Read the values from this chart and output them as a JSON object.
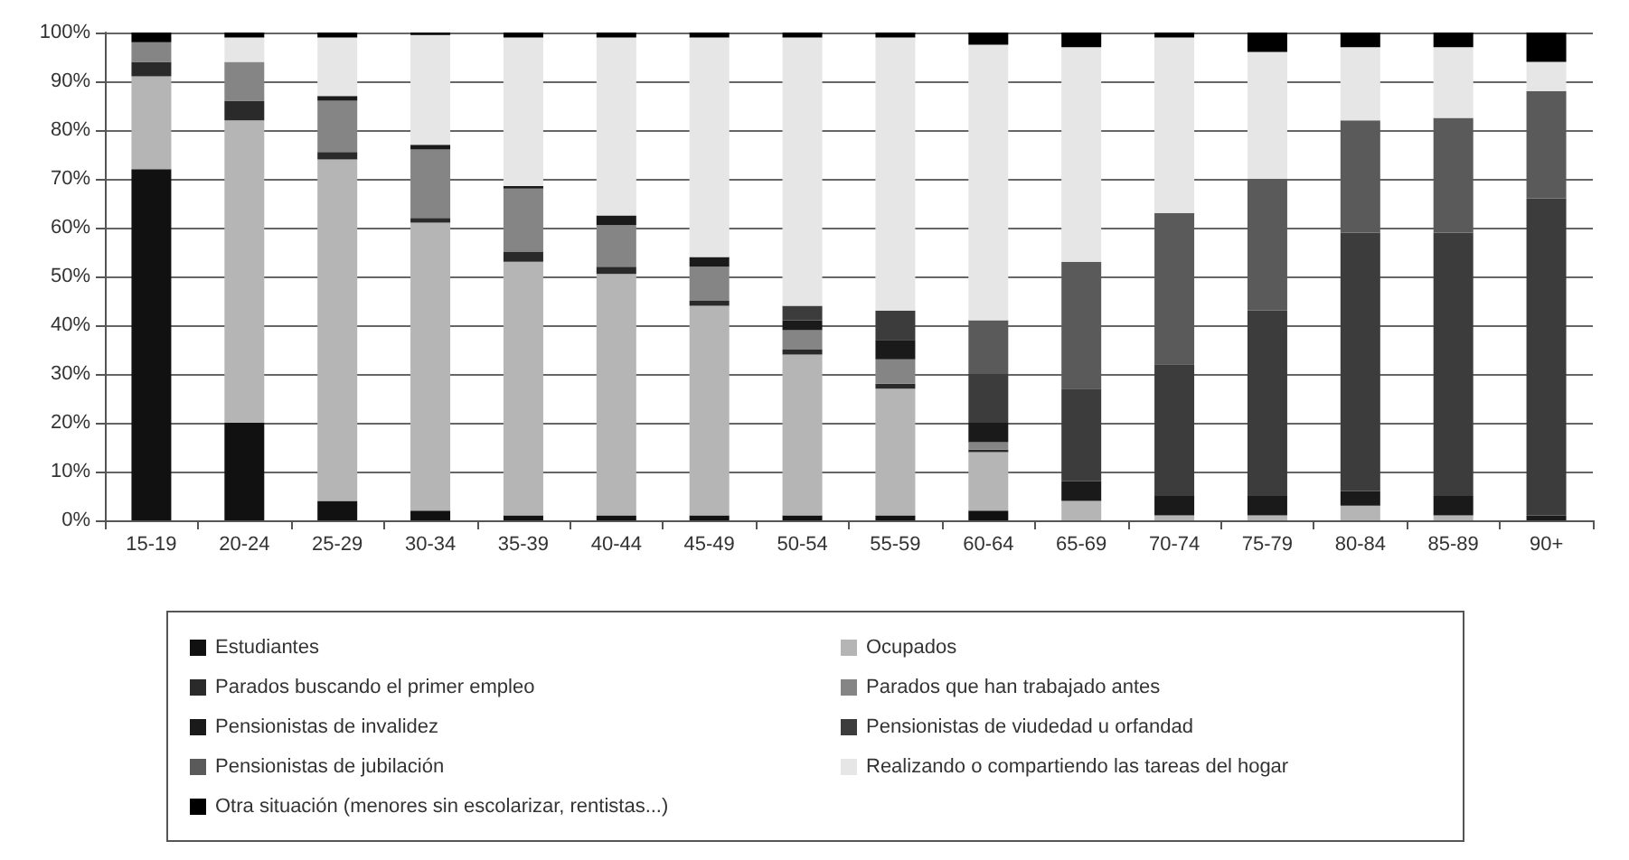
{
  "chart_data": {
    "type": "bar",
    "stacked": true,
    "grid": "y",
    "legend": "bottom",
    "categories": [
      "15-19",
      "20-24",
      "25-29",
      "30-34",
      "35-39",
      "40-44",
      "45-49",
      "50-54",
      "55-59",
      "60-64",
      "65-69",
      "70-74",
      "75-79",
      "80-84",
      "85-89",
      "90+"
    ],
    "ylim": [
      0,
      100
    ],
    "yticks": [
      {
        "value": 0,
        "label": "0%"
      },
      {
        "value": 10,
        "label": "10%"
      },
      {
        "value": 20,
        "label": "20%"
      },
      {
        "value": 30,
        "label": "30%"
      },
      {
        "value": 40,
        "label": "40%"
      },
      {
        "value": 50,
        "label": "50%"
      },
      {
        "value": 60,
        "label": "60%"
      },
      {
        "value": 70,
        "label": "70%"
      },
      {
        "value": 80,
        "label": "80%"
      },
      {
        "value": 90,
        "label": "90%"
      },
      {
        "value": 100,
        "label": "100%"
      }
    ],
    "series": [
      {
        "name": "Estudiantes",
        "color": "#111111",
        "values": [
          72,
          20,
          4,
          2,
          1,
          1,
          1,
          1,
          1,
          2,
          0,
          0,
          0,
          0,
          0,
          0
        ]
      },
      {
        "name": "Ocupados",
        "color": "#b5b5b5",
        "values": [
          19,
          62,
          70,
          59,
          52,
          49.5,
          43,
          33,
          26,
          12,
          4,
          1,
          1,
          3,
          1,
          0
        ]
      },
      {
        "name": "Parados buscando el primer empleo",
        "color": "#2a2a2a",
        "values": [
          3,
          4,
          1.5,
          1,
          2,
          1.5,
          1,
          1,
          1,
          0.5,
          0,
          0,
          0,
          0,
          0,
          0
        ]
      },
      {
        "name": "Parados que han trabajado antes",
        "color": "#858585",
        "values": [
          4,
          8,
          10.5,
          14,
          13,
          8.5,
          7,
          4,
          5,
          1.5,
          0,
          0,
          0,
          0,
          0,
          0
        ]
      },
      {
        "name": "Pensionistas de invalidez",
        "color": "#1a1a1a",
        "values": [
          0,
          0,
          1,
          1,
          0.5,
          2,
          2,
          2,
          4,
          4,
          4,
          4,
          4,
          3,
          4,
          1
        ]
      },
      {
        "name": "Pensionistas de viudedad u orfandad",
        "color": "#3c3c3c",
        "values": [
          0,
          0,
          0,
          0,
          0,
          0,
          0,
          3,
          6,
          10,
          19,
          27,
          38,
          53,
          54,
          65
        ]
      },
      {
        "name": "Pensionistas de jubilación",
        "color": "#5a5a5a",
        "values": [
          0,
          0,
          0,
          0,
          0,
          0,
          0,
          0,
          0,
          11,
          26,
          31,
          27,
          23,
          23.5,
          22
        ]
      },
      {
        "name": "Realizando o compartiendo las tareas del hogar",
        "color": "#e6e6e6",
        "values": [
          0,
          5,
          12,
          22.5,
          30.5,
          36.5,
          45,
          55,
          56,
          56.5,
          44,
          36,
          26,
          15,
          14.5,
          6
        ]
      },
      {
        "name": "Otra situación (menores sin escolarizar, rentistas...)",
        "color": "#000000",
        "values": [
          2,
          1,
          1,
          0.5,
          1,
          1,
          1,
          1,
          1,
          2.5,
          3,
          1,
          4,
          3,
          3,
          6
        ]
      }
    ]
  }
}
